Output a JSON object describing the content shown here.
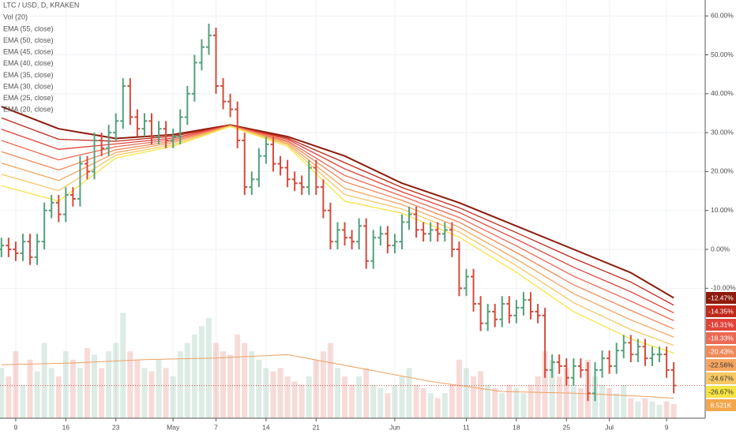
{
  "chart_data": {
    "type": "ohlc",
    "title": "LTC / USD, D, KRAKEN",
    "up_color": "#53a07c",
    "down_color": "#d64a3c",
    "open": [
      0,
      1,
      0,
      -1,
      2,
      -2,
      2,
      10,
      12,
      9,
      14,
      13,
      22,
      20,
      28,
      26,
      30,
      33,
      42,
      34,
      31,
      33,
      29,
      31,
      28,
      29,
      34,
      40,
      48,
      52,
      55,
      42,
      38,
      36,
      28,
      16,
      18,
      24,
      27,
      22,
      21,
      18,
      17,
      16,
      21,
      16,
      10,
      2,
      5,
      3,
      2,
      6,
      -3,
      3,
      4,
      1,
      2,
      7,
      9,
      5,
      4,
      5,
      4,
      5,
      0,
      -10,
      -7,
      -14,
      -19,
      -16,
      -18,
      -14,
      -17,
      -15,
      -13,
      -16,
      -17,
      -31,
      -29,
      -30,
      -33,
      -30,
      -31,
      -37,
      -31,
      -28,
      -30,
      -26,
      -24,
      -27,
      -25,
      -28,
      -27,
      -27,
      -31
    ],
    "high": [
      3,
      3,
      2,
      4,
      4,
      4,
      12,
      14,
      14,
      16,
      16,
      24,
      24,
      30,
      30,
      32,
      35,
      44,
      44,
      36,
      35,
      35,
      33,
      33,
      31,
      36,
      42,
      50,
      54,
      58,
      57,
      44,
      40,
      38,
      30,
      20,
      26,
      29,
      29,
      24,
      23,
      20,
      19,
      23,
      23,
      18,
      12,
      7,
      7,
      5,
      8,
      8,
      5,
      6,
      6,
      4,
      9,
      11,
      11,
      7,
      7,
      7,
      7,
      7,
      2,
      -5,
      -5,
      -12,
      -14,
      -14,
      -12,
      -12,
      -13,
      -11,
      -11,
      -14,
      -15,
      -27,
      -27,
      -28,
      -28,
      -28,
      -29,
      -29,
      -26,
      -26,
      -24,
      -22,
      -22,
      -23,
      -23,
      -25,
      -25,
      -25,
      -29
    ],
    "low": [
      -2,
      -2,
      -3,
      -3,
      -4,
      -4,
      0,
      8,
      7,
      7,
      11,
      11,
      18,
      18,
      24,
      24,
      28,
      31,
      32,
      29,
      29,
      27,
      27,
      26,
      26,
      27,
      32,
      38,
      46,
      50,
      40,
      36,
      34,
      26,
      14,
      14,
      16,
      22,
      20,
      19,
      16,
      15,
      14,
      14,
      14,
      8,
      0,
      0,
      1,
      0,
      0,
      -5,
      -5,
      1,
      -1,
      -1,
      0,
      5,
      3,
      2,
      2,
      2,
      2,
      -2,
      -12,
      -12,
      -16,
      -21,
      -21,
      -20,
      -20,
      -19,
      -19,
      -17,
      -18,
      -19,
      -33,
      -33,
      -32,
      -35,
      -35,
      -33,
      -39,
      -39,
      -33,
      -32,
      -32,
      -28,
      -29,
      -29,
      -30,
      -30,
      -29,
      -33,
      -37
    ],
    "close": [
      1,
      0,
      -1,
      2,
      -2,
      2,
      10,
      12,
      9,
      14,
      13,
      22,
      20,
      28,
      26,
      30,
      33,
      42,
      34,
      31,
      33,
      29,
      31,
      28,
      29,
      34,
      40,
      48,
      52,
      55,
      42,
      38,
      36,
      28,
      16,
      18,
      24,
      27,
      22,
      21,
      18,
      17,
      16,
      21,
      16,
      10,
      2,
      5,
      3,
      2,
      6,
      -3,
      3,
      4,
      1,
      2,
      7,
      9,
      5,
      4,
      5,
      4,
      5,
      0,
      -10,
      -7,
      -14,
      -19,
      -16,
      -18,
      -14,
      -17,
      -15,
      -13,
      -16,
      -17,
      -31,
      -29,
      -30,
      -33,
      -30,
      -31,
      -37,
      -31,
      -28,
      -30,
      -26,
      -24,
      -27,
      -25,
      -28,
      -27,
      -27,
      -31,
      -35
    ],
    "xlim": [
      -0.2,
      98.4
    ],
    "xticks": [
      {
        "value": 2,
        "label": "9"
      },
      {
        "value": 9,
        "label": "16"
      },
      {
        "value": 16,
        "label": "23"
      },
      {
        "value": 24,
        "label": "May"
      },
      {
        "value": 30,
        "label": "7"
      },
      {
        "value": 37,
        "label": "14"
      },
      {
        "value": 44,
        "label": "21"
      },
      {
        "value": 55,
        "label": "Jun"
      },
      {
        "value": 65,
        "label": "11"
      },
      {
        "value": 72,
        "label": "18"
      },
      {
        "value": 79,
        "label": "25"
      },
      {
        "value": 85,
        "label": "Jul"
      },
      {
        "value": 93,
        "label": "9"
      }
    ],
    "ylim": [
      -43.4,
      64.1
    ],
    "yticks": [
      {
        "value": 60,
        "label": "60.00%"
      },
      {
        "value": 50,
        "label": "50.00%"
      },
      {
        "value": 40,
        "label": "40.00%"
      },
      {
        "value": 30,
        "label": "30.00%"
      },
      {
        "value": 20,
        "label": "20.00%"
      },
      {
        "value": 10,
        "label": "10.00%"
      },
      {
        "value": 0,
        "label": "0.00%"
      },
      {
        "value": -10,
        "label": "-10.00%"
      }
    ],
    "grid": true,
    "volume": {
      "name": "Vol (20)",
      "ylim": [
        0,
        250
      ],
      "values": [
        30,
        25,
        40,
        20,
        35,
        28,
        45,
        30,
        25,
        40,
        35,
        30,
        42,
        38,
        30,
        40,
        45,
        63,
        40,
        35,
        30,
        28,
        35,
        30,
        25,
        40,
        45,
        50,
        55,
        60,
        45,
        40,
        38,
        50,
        45,
        40,
        35,
        30,
        28,
        30,
        25,
        22,
        20,
        25,
        35,
        40,
        45,
        30,
        25,
        20,
        25,
        30,
        20,
        18,
        15,
        20,
        25,
        30,
        20,
        18,
        15,
        12,
        15,
        20,
        35,
        30,
        25,
        28,
        20,
        18,
        15,
        20,
        18,
        15,
        20,
        25,
        40,
        35,
        25,
        30,
        20,
        18,
        35,
        25,
        20,
        18,
        15,
        20,
        12,
        10,
        12,
        10,
        8,
        10,
        8.521
      ],
      "last_label": "8.521K",
      "last_color": "#f3a64a",
      "ma": {
        "color": "#f0a060",
        "x": [
          0,
          10,
          20,
          30,
          40,
          50,
          60,
          70,
          80,
          90,
          94
        ],
        "values": [
          32,
          33,
          35,
          36,
          38,
          30,
          22,
          16,
          15,
          13,
          12
        ]
      }
    },
    "series": [
      {
        "name": "EMA (55, close)",
        "color": "#8e1b0c",
        "x": [
          0,
          8,
          16,
          24,
          32,
          40,
          48,
          56,
          64,
          72,
          80,
          88,
          94
        ],
        "values": [
          36.7,
          31,
          28.5,
          29.5,
          32,
          29,
          24,
          17,
          12,
          6,
          0,
          -6,
          -12.47
        ],
        "last_label": "-12.47%"
      },
      {
        "name": "EMA (50, close)",
        "color": "#c0281b",
        "x": [
          0,
          8,
          16,
          24,
          32,
          40,
          48,
          56,
          64,
          72,
          80,
          88,
          94
        ],
        "values": [
          33.8,
          28.3,
          27.8,
          29.1,
          31.9,
          28.6,
          22.3,
          15.9,
          10.7,
          4.3,
          -2.3,
          -8.4,
          -14.35
        ],
        "last_label": "-14.35%"
      },
      {
        "name": "EMA (45, close)",
        "color": "#e0433a",
        "x": [
          0,
          8,
          16,
          24,
          32,
          40,
          48,
          56,
          64,
          72,
          80,
          88,
          94
        ],
        "values": [
          30.9,
          25.7,
          27.1,
          28.6,
          31.9,
          28.3,
          20.7,
          14.8,
          9.5,
          2.6,
          -4.6,
          -10.9,
          -16.31
        ],
        "last_label": "-16.31%"
      },
      {
        "name": "EMA (40, close)",
        "color": "#ec6a55",
        "x": [
          0,
          8,
          16,
          24,
          32,
          40,
          48,
          56,
          64,
          72,
          80,
          88,
          94
        ],
        "values": [
          28.0,
          23.0,
          26.4,
          28.2,
          31.8,
          27.9,
          19.0,
          13.7,
          8.2,
          0.9,
          -6.9,
          -13.3,
          -18.33
        ],
        "last_label": "-18.33%"
      },
      {
        "name": "EMA (35, close)",
        "color": "#f08a5a",
        "x": [
          0,
          8,
          16,
          24,
          32,
          40,
          48,
          56,
          64,
          72,
          80,
          88,
          94
        ],
        "values": [
          25.1,
          20.4,
          25.6,
          27.8,
          31.8,
          27.6,
          17.4,
          12.6,
          7.0,
          -0.8,
          -9.1,
          -15.7,
          -20.43
        ],
        "last_label": "-20.43%"
      },
      {
        "name": "EMA (30, close)",
        "color": "#f4a660",
        "x": [
          0,
          8,
          16,
          24,
          32,
          40,
          48,
          56,
          64,
          72,
          80,
          88,
          94
        ],
        "values": [
          22.2,
          17.7,
          24.9,
          27.4,
          31.7,
          27.2,
          15.7,
          11.5,
          5.7,
          -2.5,
          -11.4,
          -18.1,
          -22.56
        ],
        "last_label": "-22.56%"
      },
      {
        "name": "EMA (25, close)",
        "color": "#f7c763",
        "x": [
          0,
          8,
          16,
          24,
          32,
          40,
          48,
          56,
          64,
          72,
          80,
          88,
          94
        ],
        "values": [
          19.3,
          15.1,
          24.2,
          26.9,
          31.7,
          26.9,
          14.1,
          10.4,
          4.5,
          -4.2,
          -13.7,
          -20.6,
          -24.67
        ],
        "last_label": "-24.67%"
      },
      {
        "name": "EMA (20, close)",
        "color": "#f6e444",
        "x": [
          0,
          8,
          16,
          24,
          32,
          40,
          48,
          56,
          64,
          72,
          80,
          88,
          94
        ],
        "values": [
          16.4,
          12.4,
          23.5,
          26.5,
          31.6,
          26.5,
          12.4,
          9.3,
          3.2,
          -5.9,
          -16,
          -23,
          -26.67
        ],
        "last_label": "-26.67%"
      }
    ]
  }
}
